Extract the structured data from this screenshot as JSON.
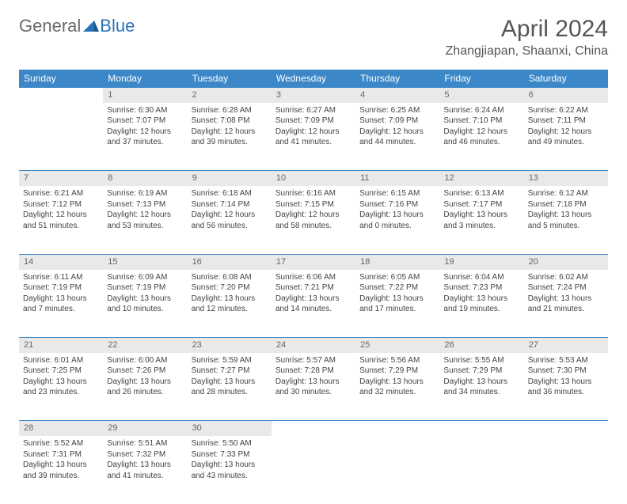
{
  "logo": {
    "general": "General",
    "blue": "Blue"
  },
  "title": "April 2024",
  "location": "Zhangjiapan, Shaanxi, China",
  "colors": {
    "header_bg": "#3b87c8",
    "header_text": "#ffffff",
    "daynum_bg": "#e9e9e9",
    "border": "#3b87c8",
    "text": "#444444",
    "logo_gray": "#6a6a6a",
    "logo_blue": "#2a72b5"
  },
  "weekdays": [
    "Sunday",
    "Monday",
    "Tuesday",
    "Wednesday",
    "Thursday",
    "Friday",
    "Saturday"
  ],
  "weeks": [
    {
      "nums": [
        "",
        "1",
        "2",
        "3",
        "4",
        "5",
        "6"
      ],
      "cells": [
        [],
        [
          "Sunrise: 6:30 AM",
          "Sunset: 7:07 PM",
          "Daylight: 12 hours",
          "and 37 minutes."
        ],
        [
          "Sunrise: 6:28 AM",
          "Sunset: 7:08 PM",
          "Daylight: 12 hours",
          "and 39 minutes."
        ],
        [
          "Sunrise: 6:27 AM",
          "Sunset: 7:09 PM",
          "Daylight: 12 hours",
          "and 41 minutes."
        ],
        [
          "Sunrise: 6:25 AM",
          "Sunset: 7:09 PM",
          "Daylight: 12 hours",
          "and 44 minutes."
        ],
        [
          "Sunrise: 6:24 AM",
          "Sunset: 7:10 PM",
          "Daylight: 12 hours",
          "and 46 minutes."
        ],
        [
          "Sunrise: 6:22 AM",
          "Sunset: 7:11 PM",
          "Daylight: 12 hours",
          "and 49 minutes."
        ]
      ]
    },
    {
      "nums": [
        "7",
        "8",
        "9",
        "10",
        "11",
        "12",
        "13"
      ],
      "cells": [
        [
          "Sunrise: 6:21 AM",
          "Sunset: 7:12 PM",
          "Daylight: 12 hours",
          "and 51 minutes."
        ],
        [
          "Sunrise: 6:19 AM",
          "Sunset: 7:13 PM",
          "Daylight: 12 hours",
          "and 53 minutes."
        ],
        [
          "Sunrise: 6:18 AM",
          "Sunset: 7:14 PM",
          "Daylight: 12 hours",
          "and 56 minutes."
        ],
        [
          "Sunrise: 6:16 AM",
          "Sunset: 7:15 PM",
          "Daylight: 12 hours",
          "and 58 minutes."
        ],
        [
          "Sunrise: 6:15 AM",
          "Sunset: 7:16 PM",
          "Daylight: 13 hours",
          "and 0 minutes."
        ],
        [
          "Sunrise: 6:13 AM",
          "Sunset: 7:17 PM",
          "Daylight: 13 hours",
          "and 3 minutes."
        ],
        [
          "Sunrise: 6:12 AM",
          "Sunset: 7:18 PM",
          "Daylight: 13 hours",
          "and 5 minutes."
        ]
      ]
    },
    {
      "nums": [
        "14",
        "15",
        "16",
        "17",
        "18",
        "19",
        "20"
      ],
      "cells": [
        [
          "Sunrise: 6:11 AM",
          "Sunset: 7:19 PM",
          "Daylight: 13 hours",
          "and 7 minutes."
        ],
        [
          "Sunrise: 6:09 AM",
          "Sunset: 7:19 PM",
          "Daylight: 13 hours",
          "and 10 minutes."
        ],
        [
          "Sunrise: 6:08 AM",
          "Sunset: 7:20 PM",
          "Daylight: 13 hours",
          "and 12 minutes."
        ],
        [
          "Sunrise: 6:06 AM",
          "Sunset: 7:21 PM",
          "Daylight: 13 hours",
          "and 14 minutes."
        ],
        [
          "Sunrise: 6:05 AM",
          "Sunset: 7:22 PM",
          "Daylight: 13 hours",
          "and 17 minutes."
        ],
        [
          "Sunrise: 6:04 AM",
          "Sunset: 7:23 PM",
          "Daylight: 13 hours",
          "and 19 minutes."
        ],
        [
          "Sunrise: 6:02 AM",
          "Sunset: 7:24 PM",
          "Daylight: 13 hours",
          "and 21 minutes."
        ]
      ]
    },
    {
      "nums": [
        "21",
        "22",
        "23",
        "24",
        "25",
        "26",
        "27"
      ],
      "cells": [
        [
          "Sunrise: 6:01 AM",
          "Sunset: 7:25 PM",
          "Daylight: 13 hours",
          "and 23 minutes."
        ],
        [
          "Sunrise: 6:00 AM",
          "Sunset: 7:26 PM",
          "Daylight: 13 hours",
          "and 26 minutes."
        ],
        [
          "Sunrise: 5:59 AM",
          "Sunset: 7:27 PM",
          "Daylight: 13 hours",
          "and 28 minutes."
        ],
        [
          "Sunrise: 5:57 AM",
          "Sunset: 7:28 PM",
          "Daylight: 13 hours",
          "and 30 minutes."
        ],
        [
          "Sunrise: 5:56 AM",
          "Sunset: 7:29 PM",
          "Daylight: 13 hours",
          "and 32 minutes."
        ],
        [
          "Sunrise: 5:55 AM",
          "Sunset: 7:29 PM",
          "Daylight: 13 hours",
          "and 34 minutes."
        ],
        [
          "Sunrise: 5:53 AM",
          "Sunset: 7:30 PM",
          "Daylight: 13 hours",
          "and 36 minutes."
        ]
      ]
    },
    {
      "nums": [
        "28",
        "29",
        "30",
        "",
        "",
        "",
        ""
      ],
      "cells": [
        [
          "Sunrise: 5:52 AM",
          "Sunset: 7:31 PM",
          "Daylight: 13 hours",
          "and 39 minutes."
        ],
        [
          "Sunrise: 5:51 AM",
          "Sunset: 7:32 PM",
          "Daylight: 13 hours",
          "and 41 minutes."
        ],
        [
          "Sunrise: 5:50 AM",
          "Sunset: 7:33 PM",
          "Daylight: 13 hours",
          "and 43 minutes."
        ],
        [],
        [],
        [],
        []
      ]
    }
  ]
}
